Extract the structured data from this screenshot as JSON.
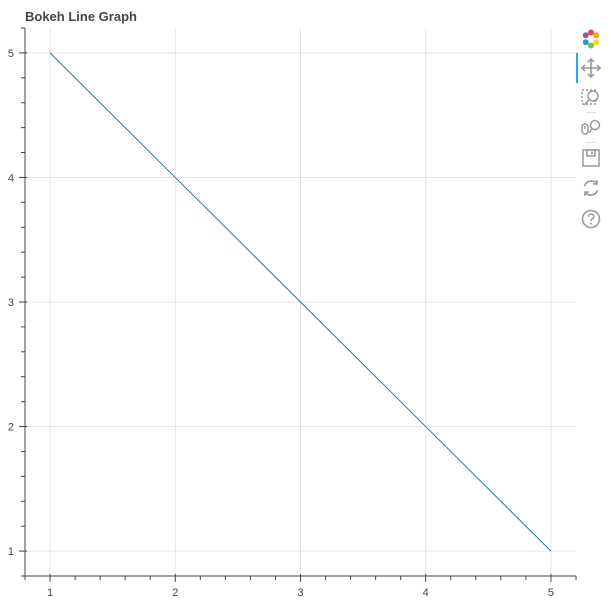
{
  "chart_data": {
    "type": "line",
    "title": "Bokeh Line Graph",
    "xlabel": "",
    "ylabel": "",
    "x": [
      1,
      2,
      3,
      4,
      5
    ],
    "series": [
      {
        "values": [
          5,
          4,
          3,
          2,
          1
        ],
        "color": "#1f77b4"
      }
    ],
    "xlim": [
      0.8,
      5.2
    ],
    "ylim": [
      0.8,
      5.2
    ],
    "x_ticks": [
      1,
      2,
      3,
      4,
      5
    ],
    "y_ticks": [
      1,
      2,
      3,
      4,
      5
    ],
    "x_tick_labels": [
      "1",
      "2",
      "3",
      "4",
      "5"
    ],
    "y_tick_labels": [
      "1",
      "2",
      "3",
      "4",
      "5"
    ],
    "grid": true
  },
  "toolbar": {
    "tools": [
      {
        "name": "bokeh-logo-icon"
      },
      {
        "name": "pan-tool-icon",
        "active": true
      },
      {
        "name": "box-zoom-tool-icon"
      },
      {
        "name": "wheel-zoom-tool-icon"
      },
      {
        "name": "save-tool-icon"
      },
      {
        "name": "reset-tool-icon"
      },
      {
        "name": "help-tool-icon"
      }
    ]
  },
  "colors": {
    "line": "#1f77b4",
    "grid": "#e5e5e5",
    "axis": "#444444",
    "tool_active": "#26aae1",
    "tool_icon": "#999999"
  }
}
